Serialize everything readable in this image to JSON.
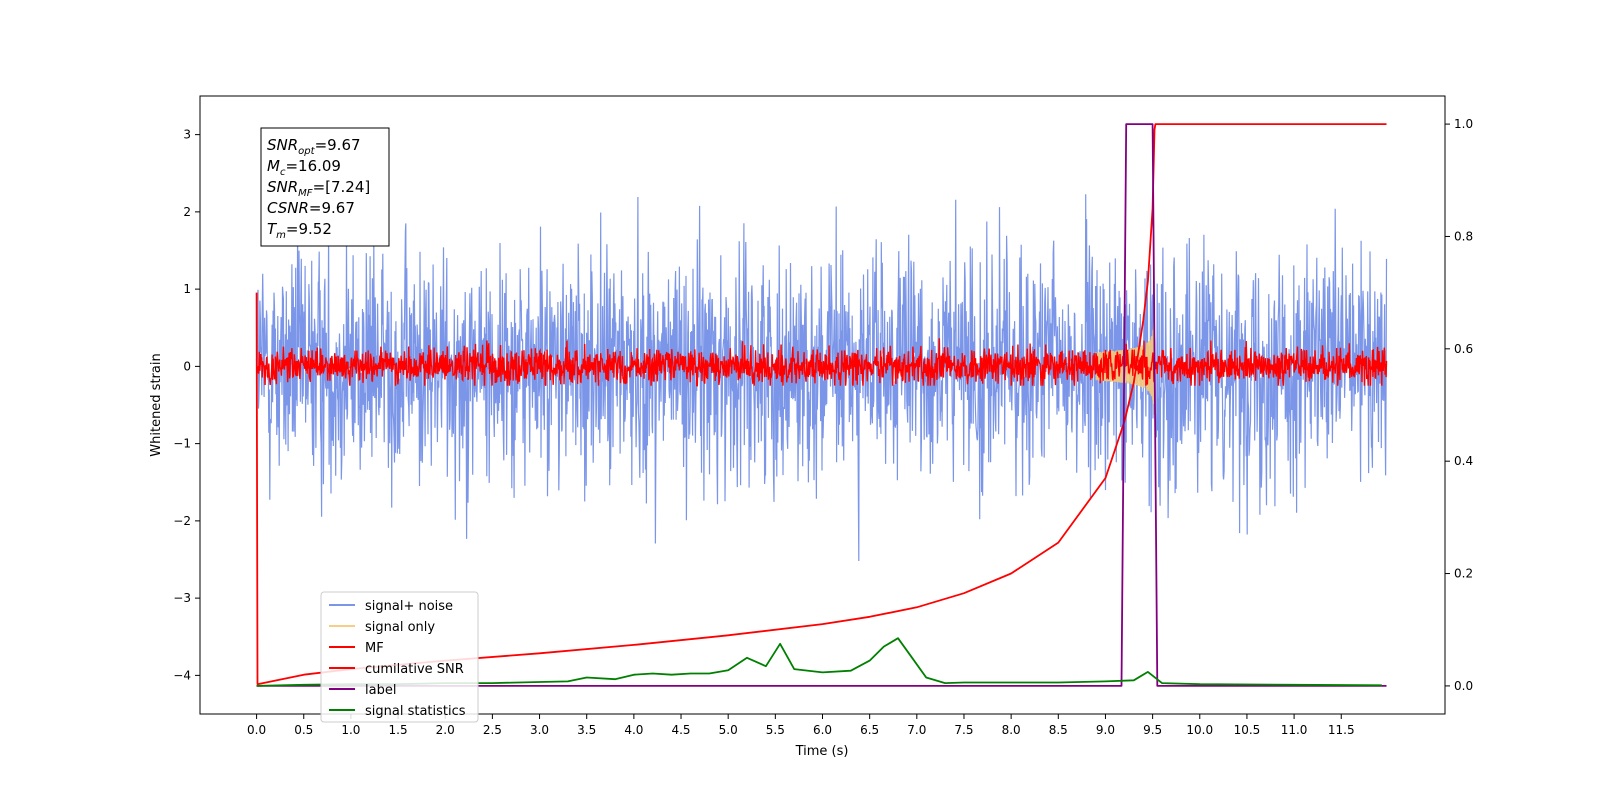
{
  "chart_data": {
    "type": "line",
    "title": "",
    "xlabel": "Time (s)",
    "ylabel": "Whitened strain",
    "xlim": [
      -0.6,
      12.6
    ],
    "ylim": [
      -4.5,
      3.5
    ],
    "y2lim": [
      -0.05,
      1.05
    ],
    "x_ticks": [
      0.0,
      0.5,
      1.0,
      1.5,
      2.0,
      2.5,
      3.0,
      3.5,
      4.0,
      4.5,
      5.0,
      5.5,
      6.0,
      6.5,
      7.0,
      7.5,
      8.0,
      8.5,
      9.0,
      9.5,
      10.0,
      10.5,
      11.0,
      11.5
    ],
    "x_tick_labels": [
      "0.0",
      "0.5",
      "1.0",
      "1.5",
      "2.0",
      "2.5",
      "3.0",
      "3.5",
      "4.0",
      "4.5",
      "5.0",
      "5.5",
      "6.0",
      "6.5",
      "7.0",
      "7.5",
      "8.0",
      "8.5",
      "9.0",
      "9.5",
      "10.0",
      "10.5",
      "11.0",
      "11.5"
    ],
    "y_ticks": [
      3,
      2,
      1,
      0,
      -1,
      -2,
      -3,
      -4
    ],
    "y_tick_labels": [
      "3",
      "2",
      "1",
      "0",
      "−1",
      "−2",
      "−3",
      "−4"
    ],
    "y2_ticks": [
      1.0,
      0.8,
      0.6,
      0.4,
      0.2,
      0.0
    ],
    "y2_tick_labels": [
      "1.0",
      "0.8",
      "0.6",
      "0.4",
      "0.2",
      "0.0"
    ],
    "grid": false,
    "legend_position": "bottom-left",
    "annotation": {
      "lines": [
        {
          "sym": "SNR",
          "sub": "opt",
          "value": "=9.67"
        },
        {
          "sym": "M",
          "sub": "c",
          "value": "=16.09"
        },
        {
          "sym": "SNR",
          "sub": "MF",
          "value": "=[7.24]"
        },
        {
          "sym": "CSNR",
          "sub": "",
          "value": "=9.67"
        },
        {
          "sym": "T",
          "sub": "m",
          "value": "=9.52"
        }
      ]
    },
    "series": [
      {
        "name": "signal+ noise",
        "axis": "left",
        "color": "#7b96e8",
        "kind": "noise",
        "x_range": [
          0.0,
          11.98
        ],
        "std": 0.75,
        "min": -2.8,
        "max": 2.55
      },
      {
        "name": "signal only",
        "axis": "left",
        "color": "#f5c97a",
        "kind": "chirp",
        "x_range": [
          8.9,
          9.52
        ],
        "peak_amplitude": 0.65
      },
      {
        "name": "MF",
        "axis": "left",
        "color": "#ff0000",
        "kind": "noise",
        "x_range": [
          0.0,
          11.98
        ],
        "std": 0.12,
        "min": -0.25,
        "max": 0.45
      },
      {
        "name": "cumilative SNR",
        "axis": "right",
        "color": "#ff0000",
        "x": [
          0.0,
          0.01,
          0.5,
          1.0,
          2.0,
          3.0,
          4.0,
          5.0,
          6.0,
          6.5,
          7.0,
          7.5,
          8.0,
          8.5,
          9.0,
          9.2,
          9.3,
          9.4,
          9.45,
          9.5,
          9.52,
          9.53,
          11.98
        ],
        "y": [
          0.7,
          0.003,
          0.02,
          0.03,
          0.045,
          0.058,
          0.073,
          0.09,
          0.11,
          0.123,
          0.14,
          0.165,
          0.2,
          0.255,
          0.37,
          0.47,
          0.54,
          0.65,
          0.72,
          0.85,
          0.99,
          1.0,
          1.0
        ]
      },
      {
        "name": "label",
        "axis": "right",
        "color": "#800080",
        "x": [
          0.0,
          9.17,
          9.22,
          9.5,
          9.55,
          11.98
        ],
        "y": [
          0.0,
          0.0,
          1.0,
          1.0,
          0.0,
          0.0
        ]
      },
      {
        "name": "signal statistics",
        "axis": "right",
        "color": "#008000",
        "x": [
          0.0,
          0.5,
          1.0,
          1.5,
          2.0,
          2.5,
          3.0,
          3.3,
          3.5,
          3.8,
          4.0,
          4.2,
          4.4,
          4.6,
          4.8,
          5.0,
          5.2,
          5.4,
          5.55,
          5.7,
          6.0,
          6.3,
          6.5,
          6.65,
          6.8,
          6.95,
          7.1,
          7.3,
          7.5,
          8.0,
          8.5,
          9.0,
          9.3,
          9.45,
          9.6,
          10.0,
          11.0,
          11.93
        ],
        "y": [
          0.0,
          0.002,
          0.003,
          0.003,
          0.005,
          0.005,
          0.007,
          0.008,
          0.015,
          0.012,
          0.02,
          0.022,
          0.02,
          0.022,
          0.022,
          0.028,
          0.05,
          0.035,
          0.075,
          0.03,
          0.024,
          0.027,
          0.045,
          0.07,
          0.085,
          0.05,
          0.015,
          0.005,
          0.006,
          0.006,
          0.006,
          0.008,
          0.01,
          0.025,
          0.005,
          0.003,
          0.002,
          0.001
        ]
      }
    ]
  }
}
